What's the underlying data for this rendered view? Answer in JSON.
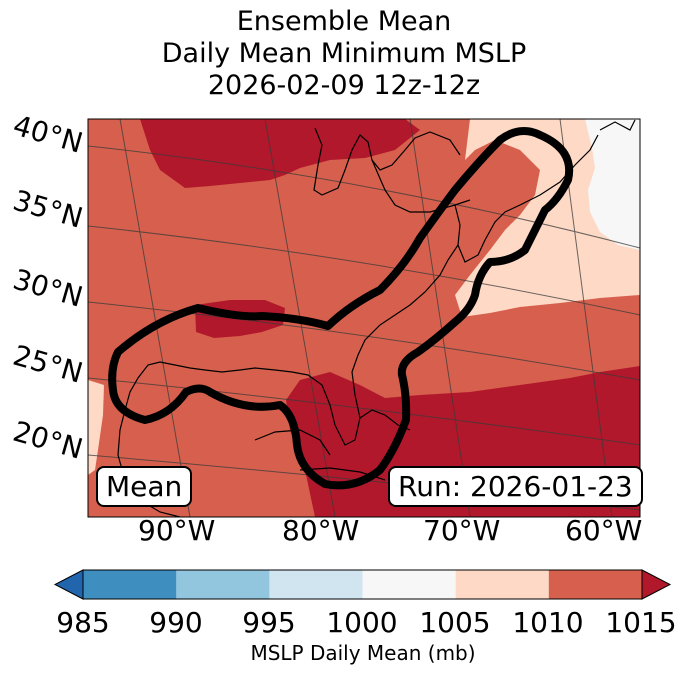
{
  "title": {
    "line1": "Ensemble Mean",
    "line2": "Daily Mean Minimum MSLP",
    "line3": "2026-02-09 12z-12z"
  },
  "map": {
    "lat_labels": [
      "40°N",
      "35°N",
      "30°N",
      "25°N",
      "20°N"
    ],
    "lon_labels": [
      "90°W",
      "80°W",
      "70°W",
      "60°W"
    ],
    "mean_label": "Mean",
    "run_label": "Run: 2026-01-23",
    "features": [
      "coastlines",
      "graticule",
      "outlined region: Gulf of Mexico to New England"
    ]
  },
  "colorbar": {
    "ticks": [
      "985",
      "990",
      "995",
      "1000",
      "1005",
      "1010",
      "1015"
    ],
    "colors": [
      "#3f8ec0",
      "#92c5de",
      "#d1e5f0",
      "#f7f7f7",
      "#fdd9c6",
      "#d6604d",
      "#b2182b"
    ],
    "under_color": "#2166ac",
    "over_color": "#b2182b",
    "label": "MSLP Daily Mean (mb)"
  },
  "palette": {
    "dark_red": "#b2182b",
    "red": "#d6604d",
    "peach": "#fdd9c6",
    "white": "#f7f7f7",
    "outline": "#000000"
  }
}
